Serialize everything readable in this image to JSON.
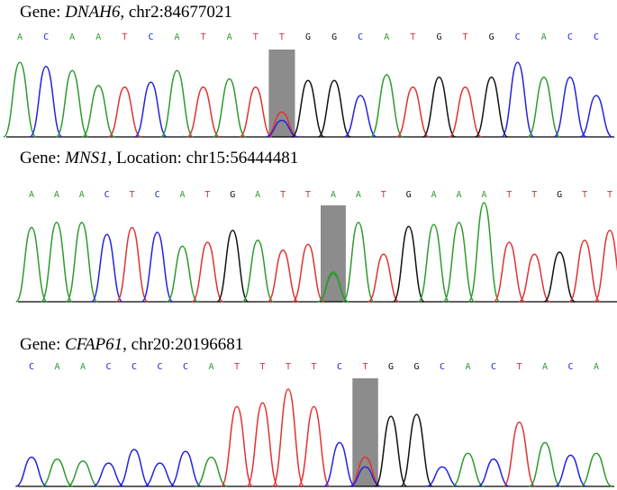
{
  "colors": {
    "A": "#2e9a2e",
    "C": "#2323e0",
    "G": "#111111",
    "T": "#e03232",
    "highlight": "#8c8c8c"
  },
  "panels": [
    {
      "gene_prefix": "Gene: ",
      "gene": "DNAH6",
      "gene_suffix": ", chr2:84677021",
      "bases": [
        "A",
        "C",
        "A",
        "A",
        "T",
        "C",
        "A",
        "T",
        "A",
        "T",
        "T",
        "G",
        "G",
        "C",
        "A",
        "T",
        "G",
        "T",
        "G",
        "C",
        "A",
        "C",
        "C"
      ],
      "highlight_index": 10
    },
    {
      "gene_prefix": "Gene: ",
      "gene": "MNS1",
      "gene_suffix": ", Location: chr15:56444481",
      "bases": [
        "A",
        "A",
        "A",
        "C",
        "T",
        "C",
        "A",
        "T",
        "G",
        "A",
        "T",
        "T",
        "A",
        "A",
        "T",
        "G",
        "A",
        "A",
        "A",
        "T",
        "T",
        "G",
        "T",
        "T"
      ],
      "highlight_index": 12
    },
    {
      "gene_prefix": "Gene: ",
      "gene": "CFAP61",
      "gene_suffix": ", chr20:20196681",
      "bases": [
        "C",
        "A",
        "A",
        "C",
        "C",
        "C",
        "C",
        "A",
        "T",
        "T",
        "T",
        "T",
        "C",
        "T",
        "G",
        "G",
        "C",
        "A",
        "C",
        "T",
        "A",
        "C",
        "A"
      ],
      "highlight_index": 13
    }
  ]
}
